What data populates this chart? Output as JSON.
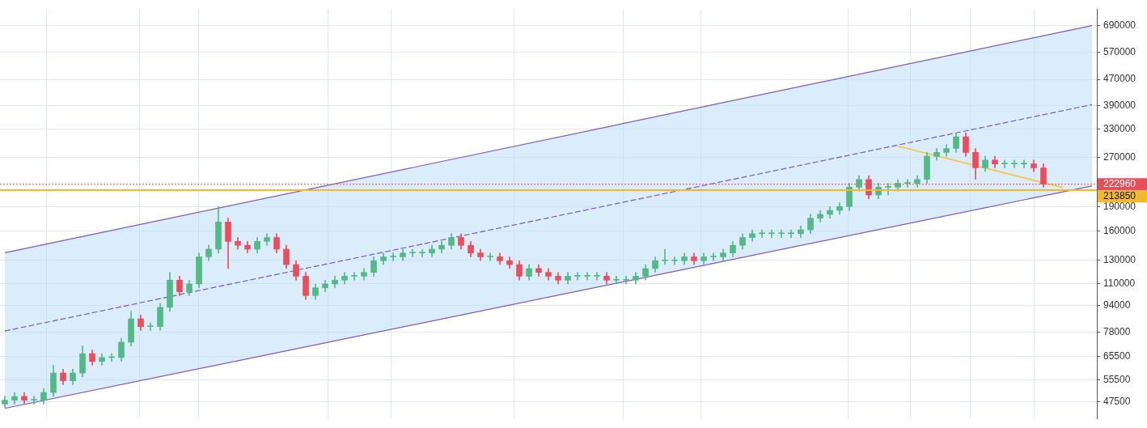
{
  "chart_data": {
    "type": "candlestick",
    "categories": [
      null,
      null,
      null,
      null,
      null,
      null,
      null,
      null,
      null,
      null,
      null,
      null,
      null,
      null,
      null,
      null,
      null,
      null,
      null,
      null,
      null,
      null,
      null,
      null,
      null,
      null,
      null,
      null,
      null,
      null,
      null,
      null,
      null,
      null,
      null,
      null,
      null,
      null,
      null,
      null,
      null,
      null,
      null,
      null,
      null,
      null,
      null,
      null,
      null,
      null,
      null,
      null,
      null,
      null,
      null,
      null,
      null,
      null,
      null,
      null,
      null,
      null,
      null,
      null,
      null,
      null,
      null,
      null,
      null,
      null,
      null,
      null,
      null,
      null,
      null,
      null,
      null,
      null,
      null,
      null,
      null,
      null,
      null,
      null,
      null,
      null,
      null,
      null,
      null,
      null,
      null,
      null,
      null,
      null,
      null,
      null,
      null,
      null,
      null,
      null,
      null,
      null,
      null,
      null,
      null,
      null,
      null,
      null,
      null,
      null,
      null,
      null,
      null
    ],
    "ohlc": [
      [
        46700,
        49300,
        45500,
        48000
      ],
      [
        48000,
        50700,
        46700,
        49300
      ],
      [
        49300,
        50700,
        46700,
        48000
      ],
      [
        48000,
        49300,
        46700,
        48000
      ],
      [
        48000,
        52100,
        46700,
        50700
      ],
      [
        50700,
        61500,
        49300,
        58200
      ],
      [
        58200,
        59800,
        53600,
        55100
      ],
      [
        55100,
        59800,
        53600,
        58200
      ],
      [
        58200,
        70600,
        56600,
        66800
      ],
      [
        66800,
        68600,
        61500,
        63200
      ],
      [
        63200,
        66800,
        61500,
        65000
      ],
      [
        65000,
        66800,
        63200,
        65000
      ],
      [
        65000,
        74600,
        63200,
        72500
      ],
      [
        72500,
        90400,
        70600,
        85600
      ],
      [
        85600,
        88000,
        78800,
        81000
      ],
      [
        81000,
        83200,
        78800,
        81000
      ],
      [
        81000,
        95500,
        78800,
        92900
      ],
      [
        92900,
        119100,
        90400,
        112700
      ],
      [
        112700,
        115900,
        101000,
        103800
      ],
      [
        103800,
        112700,
        101000,
        109700
      ],
      [
        109700,
        136700,
        106700,
        133000
      ],
      [
        133000,
        144400,
        129400,
        140500
      ],
      [
        140500,
        190200,
        136700,
        170400
      ],
      [
        170400,
        175100,
        122400,
        148500
      ],
      [
        148500,
        152600,
        140500,
        144400
      ],
      [
        144400,
        148500,
        136700,
        140500
      ],
      [
        140500,
        152600,
        136700,
        148500
      ],
      [
        148500,
        156900,
        144400,
        152600
      ],
      [
        152600,
        156900,
        136700,
        140500
      ],
      [
        140500,
        144400,
        122400,
        125900
      ],
      [
        125900,
        129400,
        112700,
        115900
      ],
      [
        115900,
        119100,
        98200,
        101000
      ],
      [
        101000,
        109700,
        98200,
        106700
      ],
      [
        106700,
        112700,
        103800,
        109700
      ],
      [
        109700,
        115900,
        106700,
        112700
      ],
      [
        112700,
        119100,
        109700,
        115900
      ],
      [
        115900,
        119100,
        112700,
        115900
      ],
      [
        115900,
        122400,
        112700,
        119100
      ],
      [
        119100,
        133000,
        115900,
        129400
      ],
      [
        129400,
        136700,
        125900,
        133000
      ],
      [
        133000,
        136700,
        129400,
        133000
      ],
      [
        133000,
        140500,
        129400,
        136700
      ],
      [
        136700,
        140500,
        133000,
        136700
      ],
      [
        136700,
        140500,
        133000,
        136700
      ],
      [
        136700,
        144400,
        133000,
        140500
      ],
      [
        140500,
        148500,
        136700,
        144400
      ],
      [
        144400,
        156900,
        140500,
        152600
      ],
      [
        152600,
        156900,
        140500,
        144400
      ],
      [
        144400,
        148500,
        133000,
        136700
      ],
      [
        136700,
        140500,
        129400,
        133000
      ],
      [
        133000,
        136700,
        129400,
        133000
      ],
      [
        133000,
        136700,
        125900,
        129400
      ],
      [
        129400,
        133000,
        122400,
        125900
      ],
      [
        125900,
        129400,
        112700,
        115900
      ],
      [
        115900,
        125900,
        112700,
        122400
      ],
      [
        122400,
        125900,
        115900,
        119100
      ],
      [
        119100,
        122400,
        112700,
        115900
      ],
      [
        115900,
        119100,
        109700,
        112700
      ],
      [
        112700,
        119100,
        109700,
        115900
      ],
      [
        115900,
        119100,
        112700,
        115900
      ],
      [
        115900,
        119100,
        112700,
        115900
      ],
      [
        115900,
        119100,
        112700,
        115900
      ],
      [
        115900,
        119100,
        109700,
        112700
      ],
      [
        112700,
        115900,
        109700,
        112700
      ],
      [
        112700,
        115900,
        109700,
        112700
      ],
      [
        112700,
        119100,
        109700,
        115900
      ],
      [
        115900,
        125900,
        112700,
        122400
      ],
      [
        122400,
        133000,
        119100,
        129400
      ],
      [
        129400,
        140500,
        125900,
        129400
      ],
      [
        129400,
        133000,
        125900,
        129400
      ],
      [
        129400,
        136700,
        125900,
        133000
      ],
      [
        133000,
        136700,
        125900,
        129400
      ],
      [
        129400,
        136700,
        125900,
        133000
      ],
      [
        133000,
        136700,
        129400,
        133000
      ],
      [
        133000,
        140500,
        129400,
        136700
      ],
      [
        136700,
        148500,
        133000,
        144400
      ],
      [
        144400,
        156900,
        140500,
        152600
      ],
      [
        152600,
        161200,
        148500,
        156900
      ],
      [
        156900,
        161200,
        152600,
        156900
      ],
      [
        156900,
        161200,
        152600,
        156900
      ],
      [
        156900,
        161200,
        152600,
        156900
      ],
      [
        156900,
        161200,
        152600,
        156900
      ],
      [
        156900,
        165700,
        152600,
        161200
      ],
      [
        161200,
        180000,
        156900,
        175100
      ],
      [
        175100,
        185100,
        170400,
        180000
      ],
      [
        180000,
        190200,
        175100,
        185100
      ],
      [
        185100,
        195500,
        180000,
        190200
      ],
      [
        190200,
        224400,
        185100,
        218300
      ],
      [
        218300,
        237100,
        212400,
        230700
      ],
      [
        230700,
        237100,
        201000,
        206600
      ],
      [
        206600,
        224400,
        201000,
        218300
      ],
      [
        218300,
        224400,
        206600,
        218300
      ],
      [
        218300,
        230700,
        212400,
        224400
      ],
      [
        224400,
        230700,
        218300,
        224400
      ],
      [
        224400,
        237100,
        218300,
        230700
      ],
      [
        230700,
        279700,
        224400,
        272100
      ],
      [
        272100,
        287500,
        264700,
        279700
      ],
      [
        279700,
        295600,
        272100,
        287500
      ],
      [
        287500,
        321000,
        279700,
        312300
      ],
      [
        312300,
        321000,
        272100,
        279700
      ],
      [
        279700,
        287500,
        230700,
        250500
      ],
      [
        250500,
        272100,
        243700,
        264700
      ],
      [
        264700,
        272100,
        250500,
        257500
      ],
      [
        257500,
        264700,
        250500,
        257500
      ],
      [
        257500,
        264700,
        250500,
        257500
      ],
      [
        257500,
        264700,
        250500,
        257500
      ],
      [
        257500,
        264700,
        243700,
        250500
      ],
      [
        250500,
        257500,
        218300,
        222960
      ],
      null,
      null,
      null,
      null,
      null
    ],
    "colors": [
      "#53b987",
      "#53b987",
      "#eb4d5c",
      "#53b987",
      "#53b987",
      "#53b987",
      "#eb4d5c",
      "#53b987",
      "#53b987",
      "#eb4d5c",
      "#53b987",
      "#53b987",
      "#53b987",
      "#53b987",
      "#eb4d5c",
      "#53b987",
      "#53b987",
      "#53b987",
      "#eb4d5c",
      "#53b987",
      "#53b987",
      "#53b987",
      "#53b987",
      "#eb4d5c",
      "#eb4d5c",
      "#eb4d5c",
      "#53b987",
      "#53b987",
      "#eb4d5c",
      "#eb4d5c",
      "#eb4d5c",
      "#eb4d5c",
      "#53b987",
      "#53b987",
      "#53b987",
      "#53b987",
      "#53b987",
      "#53b987",
      "#53b987",
      "#53b987",
      "#53b987",
      "#53b987",
      "#53b987",
      "#53b987",
      "#53b987",
      "#53b987",
      "#53b987",
      "#eb4d5c",
      "#eb4d5c",
      "#eb4d5c",
      "#53b987",
      "#eb4d5c",
      "#eb4d5c",
      "#eb4d5c",
      "#53b987",
      "#eb4d5c",
      "#eb4d5c",
      "#eb4d5c",
      "#53b987",
      "#53b987",
      "#53b987",
      "#53b987",
      "#eb4d5c",
      "#53b987",
      "#53b987",
      "#53b987",
      "#53b987",
      "#53b987",
      "#53b987",
      "#53b987",
      "#53b987",
      "#eb4d5c",
      "#53b987",
      "#53b987",
      "#53b987",
      "#53b987",
      "#53b987",
      "#53b987",
      "#53b987",
      "#53b987",
      "#53b987",
      "#53b987",
      "#53b987",
      "#53b987",
      "#53b987",
      "#53b987",
      "#53b987",
      "#53b987",
      "#53b987",
      "#eb4d5c",
      "#53b987",
      "#53b987",
      "#53b987",
      "#53b987",
      "#53b987",
      "#53b987",
      "#53b987",
      "#53b987",
      "#53b987",
      "#eb4d5c",
      "#eb4d5c",
      "#53b987",
      "#eb4d5c",
      "#53b987",
      "#53b987",
      "#53b987",
      "#eb4d5c",
      "#eb4d5c",
      null,
      null,
      null,
      null,
      null
    ],
    "series": [
      {
        "type": "line",
        "color": "#7e57c2",
        "line_style": "dashed",
        "values": [
          78500,
          null,
          null,
          null,
          null,
          null,
          null,
          null,
          null,
          null,
          null,
          null,
          null,
          null,
          null,
          null,
          null,
          null,
          null,
          null,
          null,
          null,
          null,
          null,
          null,
          null,
          null,
          null,
          null,
          null,
          null,
          null,
          null,
          null,
          null,
          null,
          null,
          null,
          null,
          null,
          null,
          null,
          null,
          null,
          null,
          null,
          null,
          null,
          null,
          null,
          null,
          null,
          null,
          null,
          null,
          null,
          null,
          null,
          null,
          null,
          null,
          null,
          null,
          null,
          null,
          null,
          null,
          null,
          null,
          null,
          null,
          null,
          null,
          null,
          null,
          null,
          null,
          null,
          null,
          null,
          null,
          null,
          null,
          null,
          null,
          null,
          null,
          null,
          null,
          null,
          null,
          null,
          null,
          null,
          null,
          null,
          null,
          null,
          null,
          null,
          null,
          null,
          null,
          null,
          null,
          null,
          null,
          null,
          null,
          null,
          null,
          null,
          392800
        ],
        "lower": [
          45270,
          null,
          null,
          null,
          null,
          null,
          null,
          null,
          null,
          null,
          null,
          null,
          null,
          null,
          null,
          null,
          null,
          null,
          null,
          null,
          null,
          null,
          null,
          null,
          null,
          null,
          null,
          null,
          null,
          null,
          null,
          null,
          null,
          null,
          null,
          null,
          null,
          null,
          null,
          null,
          null,
          null,
          null,
          null,
          null,
          null,
          null,
          null,
          null,
          null,
          null,
          null,
          null,
          null,
          null,
          null,
          null,
          null,
          null,
          null,
          null,
          null,
          null,
          null,
          null,
          null,
          null,
          null,
          null,
          null,
          null,
          null,
          null,
          null,
          null,
          null,
          null,
          null,
          null,
          null,
          null,
          null,
          null,
          null,
          null,
          null,
          null,
          null,
          null,
          null,
          null,
          null,
          null,
          null,
          null,
          null,
          null,
          null,
          null,
          null,
          null,
          null,
          null,
          null,
          null,
          null,
          null,
          null,
          null,
          null,
          null,
          null,
          220300
        ],
        "upper": [
          137000,
          null,
          null,
          null,
          null,
          null,
          null,
          null,
          null,
          null,
          null,
          null,
          null,
          null,
          null,
          null,
          null,
          null,
          null,
          null,
          null,
          null,
          null,
          null,
          null,
          null,
          null,
          null,
          null,
          null,
          null,
          null,
          null,
          null,
          null,
          null,
          null,
          null,
          null,
          null,
          null,
          null,
          null,
          null,
          null,
          null,
          null,
          null,
          null,
          null,
          null,
          null,
          null,
          null,
          null,
          null,
          null,
          null,
          null,
          null,
          null,
          null,
          null,
          null,
          null,
          null,
          null,
          null,
          null,
          null,
          null,
          null,
          null,
          null,
          null,
          null,
          null,
          null,
          null,
          null,
          null,
          null,
          null,
          null,
          null,
          null,
          null,
          null,
          null,
          null,
          null,
          null,
          null,
          null,
          null,
          null,
          null,
          null,
          null,
          null,
          null,
          null,
          null,
          null,
          null,
          null,
          null,
          null,
          null,
          null,
          null,
          null,
          689000
        ]
      },
      {
        "type": "line",
        "color": "#7e57c2",
        "values": [
          137000,
          null,
          null,
          null,
          null,
          null,
          null,
          null,
          null,
          null,
          null,
          null,
          null,
          null,
          null,
          null,
          null,
          null,
          null,
          null,
          null,
          null,
          null,
          null,
          null,
          null,
          null,
          null,
          null,
          null,
          null,
          null,
          null,
          null,
          null,
          null,
          null,
          null,
          null,
          null,
          null,
          null,
          null,
          null,
          null,
          null,
          null,
          null,
          null,
          null,
          null,
          null,
          null,
          null,
          null,
          null,
          null,
          null,
          null,
          null,
          null,
          null,
          null,
          null,
          null,
          null,
          null,
          null,
          null,
          null,
          null,
          null,
          null,
          null,
          null,
          null,
          null,
          null,
          null,
          null,
          null,
          null,
          null,
          null,
          null,
          null,
          null,
          null,
          null,
          null,
          null,
          null,
          null,
          null,
          null,
          null,
          null,
          null,
          null,
          null,
          null,
          null,
          null,
          null,
          null,
          null,
          null,
          null,
          null,
          null,
          null,
          null,
          689000
        ]
      },
      {
        "type": "line",
        "color": "#7e57c2",
        "values": [
          45270,
          null,
          null,
          null,
          null,
          null,
          null,
          null,
          null,
          null,
          null,
          null,
          null,
          null,
          null,
          null,
          null,
          null,
          null,
          null,
          null,
          null,
          null,
          null,
          null,
          null,
          null,
          null,
          null,
          null,
          null,
          null,
          null,
          null,
          null,
          null,
          null,
          null,
          null,
          null,
          null,
          null,
          null,
          null,
          null,
          null,
          null,
          null,
          null,
          null,
          null,
          null,
          null,
          null,
          null,
          null,
          null,
          null,
          null,
          null,
          null,
          null,
          null,
          null,
          null,
          null,
          null,
          null,
          null,
          null,
          null,
          null,
          null,
          null,
          null,
          null,
          null,
          null,
          null,
          null,
          null,
          null,
          null,
          null,
          null,
          null,
          null,
          null,
          null,
          null,
          null,
          null,
          null,
          null,
          null,
          null,
          null,
          null,
          null,
          null,
          null,
          null,
          null,
          null,
          null,
          null,
          null,
          null,
          null,
          null,
          null,
          null,
          220300
        ]
      },
      {
        "type": "line",
        "color": "#f9c74f",
        "values": [
          null,
          null,
          null,
          null,
          null,
          null,
          null,
          null,
          null,
          null,
          null,
          null,
          null,
          null,
          null,
          null,
          null,
          null,
          null,
          null,
          null,
          null,
          null,
          null,
          null,
          null,
          null,
          null,
          null,
          null,
          null,
          null,
          null,
          null,
          null,
          null,
          null,
          null,
          null,
          null,
          null,
          null,
          null,
          null,
          null,
          null,
          null,
          null,
          null,
          null,
          null,
          null,
          null,
          null,
          null,
          null,
          null,
          null,
          null,
          null,
          null,
          null,
          null,
          null,
          null,
          null,
          null,
          null,
          null,
          null,
          null,
          null,
          null,
          null,
          null,
          null,
          null,
          null,
          null,
          null,
          null,
          null,
          null,
          null,
          null,
          null,
          null,
          null,
          null,
          null,
          null,
          null,
          292300,
          null,
          null,
          null,
          null,
          null,
          null,
          null,
          null,
          null,
          null,
          null,
          null,
          null,
          null,
          null,
          null,
          217700,
          null,
          null,
          null
        ]
      }
    ],
    "ref_lines": [
      {
        "axis": "y",
        "value": 222960,
        "label": "222960",
        "color": "#eb4d5c",
        "line_style": "dotted"
      },
      {
        "axis": "y",
        "value": 213850,
        "label": "213850",
        "color": "#f0b92e",
        "line_style": "solid"
      }
    ],
    "log": true,
    "ylim": [
      42000,
      775000
    ],
    "yticks": [
      47500,
      55500,
      65500,
      78000,
      94000,
      110000,
      130000,
      160000,
      190000,
      270000,
      330000,
      390000,
      470000,
      570000,
      690000
    ],
    "grid": true,
    "tick_labels": "y"
  }
}
